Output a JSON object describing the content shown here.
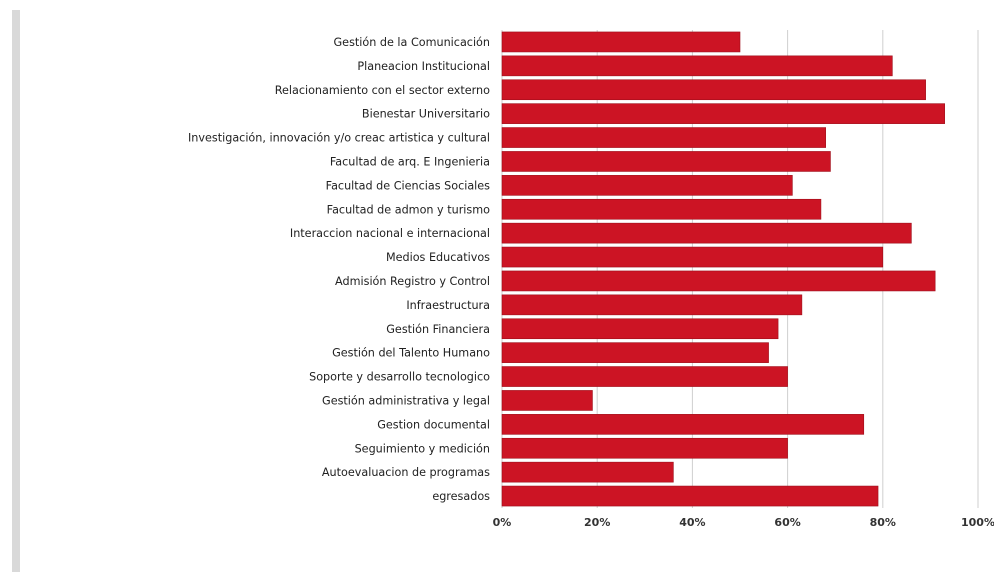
{
  "chart_data": {
    "type": "bar",
    "orientation": "horizontal",
    "title": "",
    "xlabel": "",
    "ylabel": "",
    "categories": [
      "Gestión de la Comunicación",
      "Planeacion Institucional",
      "Relacionamiento con el sector externo",
      "Bienestar Universitario",
      "Investigación, innovación y/o creac artistica y cultural",
      "Facultad de arq. E Ingenieria",
      "Facultad de Ciencias Sociales",
      "Facultad de admon y turismo",
      "Interaccion nacional e internacional",
      "Medios Educativos",
      "Admisión Registro y Control",
      "Infraestructura",
      "Gestión Financiera",
      "Gestión del Talento Humano",
      "Soporte y desarrollo tecnologico",
      "Gestión administrativa y legal",
      "Gestion documental",
      "Seguimiento y medición",
      "Autoevaluacion de programas",
      "egresados"
    ],
    "values": [
      50,
      82,
      89,
      93,
      68,
      69,
      61,
      67,
      86,
      80,
      91,
      63,
      58,
      56,
      60,
      19,
      76,
      60,
      36,
      79
    ],
    "xlim": [
      0,
      100
    ],
    "x_ticks": [
      "0%",
      "20%",
      "40%",
      "60%",
      "80%",
      "100%"
    ],
    "grid": "vertical",
    "legend": "none",
    "bar_color": "#cc1424",
    "bar_border_color": "#9e0e1a",
    "grid_color": "#cfcfcf"
  }
}
